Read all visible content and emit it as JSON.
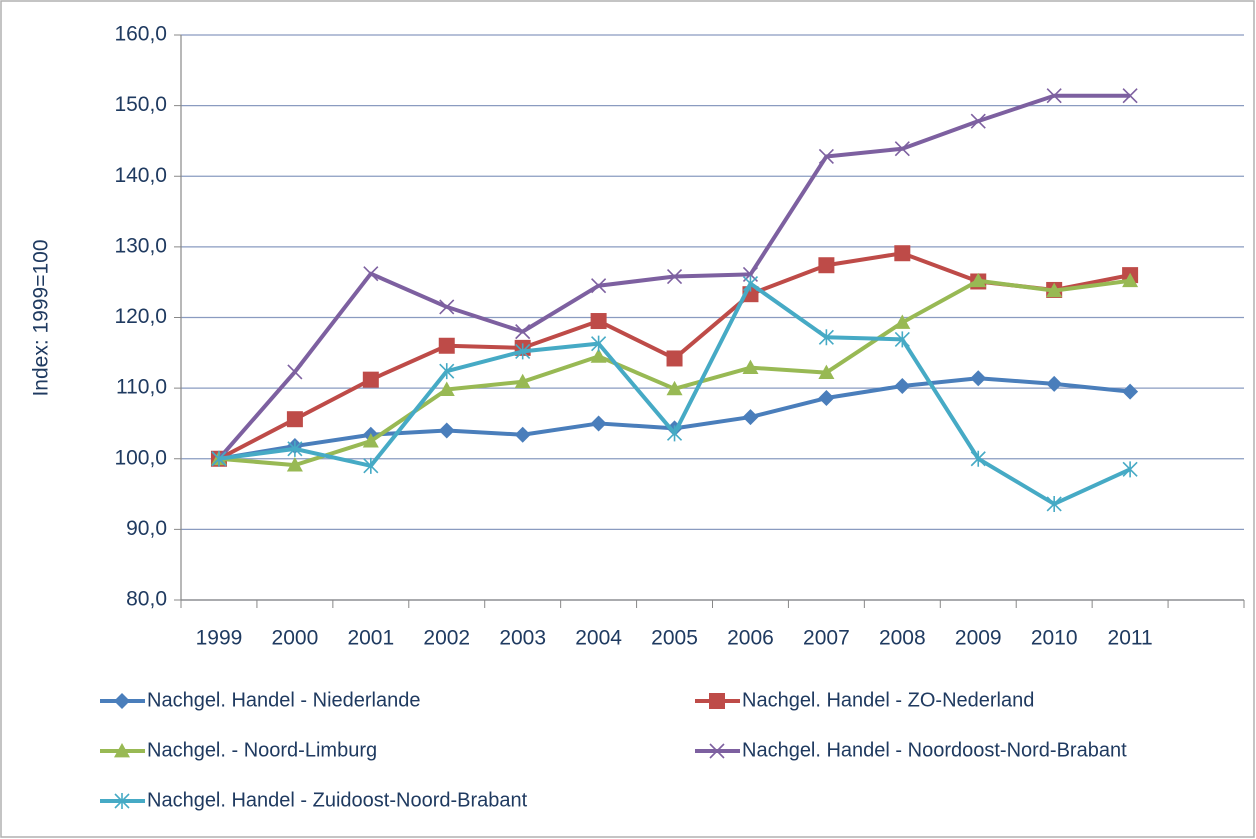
{
  "chart_data": {
    "type": "line",
    "y_label": "Index: 1999=100",
    "categories": [
      "1999",
      "2000",
      "2001",
      "2002",
      "2003",
      "2004",
      "2005",
      "2006",
      "2007",
      "2008",
      "2009",
      "2010",
      "2011",
      null
    ],
    "ylim": [
      80,
      160
    ],
    "yticks": [
      {
        "value": 80,
        "label": "80,0"
      },
      {
        "value": 90,
        "label": "90,0"
      },
      {
        "value": 100,
        "label": "100,0"
      },
      {
        "value": 110,
        "label": "110,0"
      },
      {
        "value": 120,
        "label": "120,0"
      },
      {
        "value": 130,
        "label": "130,0"
      },
      {
        "value": 140,
        "label": "140,0"
      },
      {
        "value": 150,
        "label": "150,0"
      },
      {
        "value": 160,
        "label": "160,0"
      }
    ],
    "grid": true,
    "legend": "bottom",
    "series": [
      {
        "name": "Nachgel. Handel - Niederlande",
        "color": "#4a7ebb",
        "marker": "diamond",
        "values": [
          100,
          101.8,
          103.4,
          104.0,
          103.4,
          105.0,
          104.3,
          105.9,
          108.6,
          110.3,
          111.4,
          110.6,
          109.5,
          null
        ]
      },
      {
        "name": "Nachgel. Handel - ZO-Nederland",
        "color": "#be4b48",
        "marker": "square",
        "values": [
          100,
          105.6,
          111.2,
          116.0,
          115.7,
          119.5,
          114.2,
          123.3,
          127.4,
          129.1,
          125.1,
          123.9,
          126.0,
          null
        ]
      },
      {
        "name": "Nachgel. - Noord-Limburg",
        "color": "#98b954",
        "marker": "triangle",
        "values": [
          100,
          99.1,
          102.5,
          109.8,
          110.9,
          114.5,
          109.9,
          112.9,
          112.2,
          119.3,
          125.2,
          123.8,
          125.2,
          null
        ]
      },
      {
        "name": "Nachgel. Handel - Noordoost-Nord-Brabant",
        "color": "#7d60a0",
        "marker": "x",
        "values": [
          100,
          112.3,
          126.2,
          121.5,
          118.0,
          124.5,
          125.8,
          126.1,
          142.8,
          143.9,
          147.8,
          151.4,
          151.4,
          null
        ]
      },
      {
        "name": "Nachgel. Handel - Zuidoost-Noord-Brabant",
        "color": "#46aac5",
        "marker": "star",
        "values": [
          100,
          101.4,
          99.0,
          112.4,
          115.2,
          116.3,
          103.6,
          124.8,
          117.2,
          116.9,
          100.0,
          93.6,
          98.5,
          null
        ]
      }
    ]
  }
}
